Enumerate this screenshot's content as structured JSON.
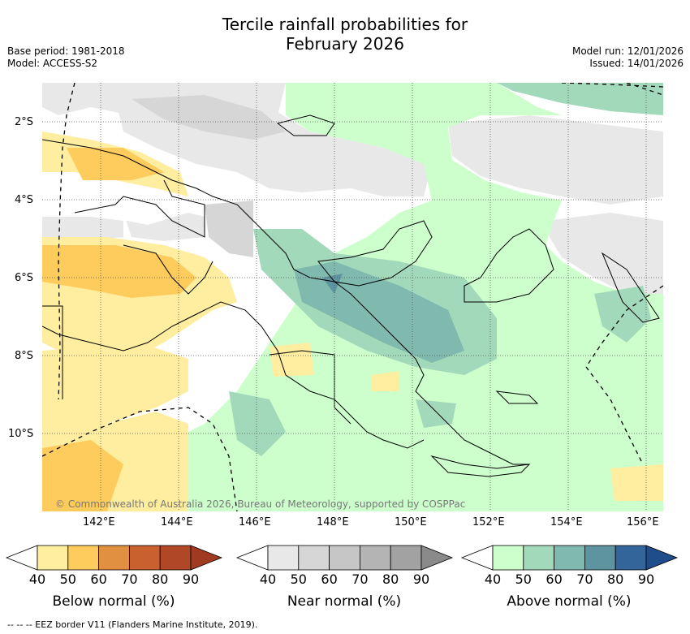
{
  "header": {
    "title_line1": "Tercile rainfall probabilities for",
    "title_line2": "February 2026",
    "base_period": "Base period: 1981-2018",
    "model": "Model: ACCESS-S2",
    "model_run": "Model run: 12/01/2026",
    "issued": "Issued: 14/01/2026"
  },
  "map": {
    "lat_labels": [
      "2°S",
      "4°S",
      "6°S",
      "8°S",
      "10°S"
    ],
    "lon_labels": [
      "142°E",
      "144°E",
      "146°E",
      "148°E",
      "150°E",
      "152°E",
      "154°E",
      "156°E"
    ],
    "copyright": "© Commonwealth of Australia 2026, Bureau of Meteorology, supported by COSPPac",
    "colors": {
      "land_outline": "#000000",
      "grid": "#555555"
    }
  },
  "legends": [
    {
      "title": "Below normal (%)",
      "ticks": [
        "40",
        "50",
        "60",
        "70",
        "80",
        "90"
      ],
      "colors": [
        "#ffeda0",
        "#fecc5c",
        "#e09040",
        "#c96030",
        "#b04828",
        "#a03a20"
      ]
    },
    {
      "title": "Near normal (%)",
      "ticks": [
        "40",
        "50",
        "60",
        "70",
        "80",
        "90"
      ],
      "colors": [
        "#e8e8e8",
        "#d6d6d6",
        "#c6c6c6",
        "#b4b4b4",
        "#a2a2a2",
        "#8a8a8a"
      ]
    },
    {
      "title": "Above normal (%)",
      "ticks": [
        "40",
        "50",
        "60",
        "70",
        "80",
        "90"
      ],
      "colors": [
        "#ccffcc",
        "#a3d9bb",
        "#80b9ad",
        "#5e94a0",
        "#33659b",
        "#1f4c8a"
      ]
    }
  ],
  "footer": {
    "eez_note": "--  --  -- EEZ border V11 (Flanders Marine Institute, 2019)."
  }
}
